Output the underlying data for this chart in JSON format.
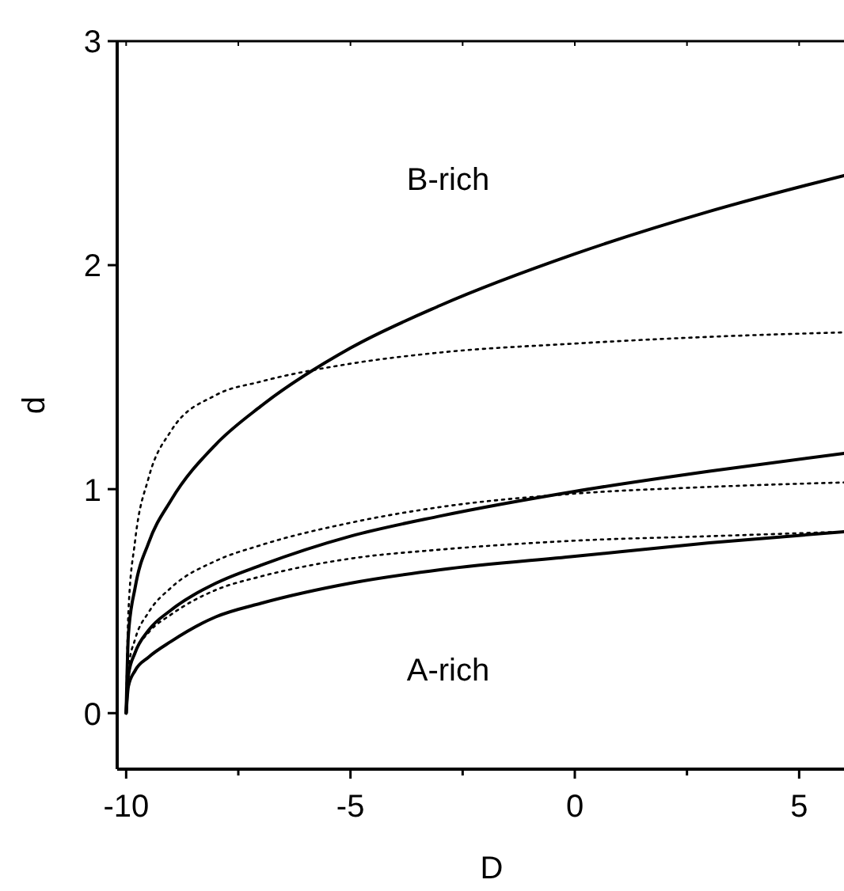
{
  "chart_data": {
    "type": "line",
    "xlabel": "D",
    "ylabel": "d",
    "x": [
      -10,
      -9.95,
      -9.8,
      -9.5,
      -9,
      -8,
      -7,
      -5,
      -3,
      0,
      3,
      6
    ],
    "series": [
      {
        "color": "#000000",
        "line_style": "solid",
        "values": [
          0,
          0.35,
          0.56,
          0.76,
          0.95,
          1.2,
          1.37,
          1.63,
          1.82,
          2.05,
          2.24,
          2.4
        ]
      },
      {
        "color": "#000000",
        "line_style": "solid",
        "values": [
          0,
          0.17,
          0.27,
          0.37,
          0.46,
          0.58,
          0.66,
          0.79,
          0.88,
          0.99,
          1.08,
          1.16
        ]
      },
      {
        "color": "#000000",
        "line_style": "solid",
        "values": [
          0,
          0.12,
          0.19,
          0.25,
          0.32,
          0.43,
          0.49,
          0.58,
          0.64,
          0.7,
          0.76,
          0.81
        ]
      },
      {
        "color": "#000000",
        "line_style": "dotted",
        "values": [
          0,
          0.45,
          0.77,
          1.05,
          1.26,
          1.42,
          1.48,
          1.56,
          1.61,
          1.65,
          1.68,
          1.7
        ]
      },
      {
        "color": "#000000",
        "line_style": "dotted",
        "values": [
          0,
          0.2,
          0.33,
          0.45,
          0.56,
          0.68,
          0.75,
          0.85,
          0.92,
          0.98,
          1.01,
          1.03
        ]
      },
      {
        "color": "#000000",
        "line_style": "dotted",
        "values": [
          0,
          0.17,
          0.27,
          0.36,
          0.44,
          0.55,
          0.61,
          0.69,
          0.73,
          0.77,
          0.79,
          0.81
        ]
      }
    ],
    "xlim": [
      -10.2,
      6
    ],
    "ylim": [
      -0.25,
      3
    ],
    "xticks": [
      -10,
      {
        "value": -7.5,
        "label": null
      },
      -5,
      {
        "value": -2.5,
        "label": null
      },
      0,
      {
        "value": 2.5,
        "label": null
      },
      5
    ],
    "yticks": [
      0,
      1,
      2,
      3
    ],
    "annotations": [
      "B-rich",
      "A-rich"
    ],
    "marker": "none",
    "grid": false
  }
}
